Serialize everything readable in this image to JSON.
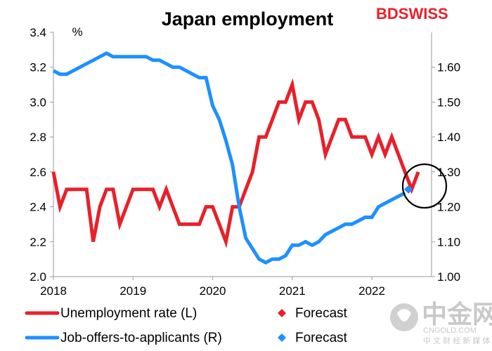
{
  "chart_data": {
    "type": "line",
    "title": "Japan employment",
    "left_axis": {
      "unit_label": "%",
      "ylim": [
        2.0,
        3.4
      ],
      "ticks": [
        "2.0",
        "2.2",
        "2.4",
        "2.6",
        "2.8",
        "3.0",
        "3.2",
        "3.4"
      ]
    },
    "right_axis": {
      "ylim": [
        1.0,
        1.7
      ],
      "ticks": [
        "1.00",
        "1.10",
        "1.20",
        "1.30",
        "1.40",
        "1.50",
        "1.60"
      ]
    },
    "x_axis": {
      "xlim": [
        2018.0,
        2022.75
      ],
      "ticks": [
        "2018",
        "2019",
        "2020",
        "2021",
        "2022"
      ]
    },
    "series": [
      {
        "name": "Unemployment rate (L)",
        "axis": "left",
        "color": "#e8202a",
        "start": 2018.0,
        "step_months": 1,
        "values": [
          2.6,
          2.4,
          2.5,
          2.5,
          2.5,
          2.5,
          2.2,
          2.4,
          2.5,
          2.5,
          2.3,
          2.4,
          2.5,
          2.5,
          2.5,
          2.5,
          2.4,
          2.5,
          2.4,
          2.3,
          2.3,
          2.3,
          2.3,
          2.4,
          2.4,
          2.3,
          2.2,
          2.4,
          2.4,
          2.5,
          2.6,
          2.8,
          2.8,
          2.9,
          3.0,
          3.0,
          3.1,
          2.9,
          3.0,
          3.0,
          2.9,
          2.7,
          2.8,
          2.9,
          2.9,
          2.8,
          2.8,
          2.8,
          2.7,
          2.8,
          2.7,
          2.8,
          2.7,
          2.6,
          2.5,
          2.6
        ]
      },
      {
        "name": "Job-offers-to-applicants (R)",
        "axis": "right",
        "color": "#1e90ff",
        "start": 2018.0,
        "step_months": 1,
        "values": [
          1.59,
          1.58,
          1.58,
          1.59,
          1.6,
          1.61,
          1.62,
          1.63,
          1.64,
          1.63,
          1.63,
          1.63,
          1.63,
          1.63,
          1.63,
          1.62,
          1.62,
          1.61,
          1.6,
          1.6,
          1.59,
          1.58,
          1.57,
          1.57,
          1.49,
          1.45,
          1.39,
          1.32,
          1.2,
          1.11,
          1.08,
          1.05,
          1.04,
          1.05,
          1.05,
          1.06,
          1.09,
          1.09,
          1.1,
          1.09,
          1.1,
          1.12,
          1.13,
          1.14,
          1.15,
          1.15,
          1.16,
          1.17,
          1.17,
          1.2,
          1.21,
          1.22,
          1.23,
          1.24
        ]
      }
    ],
    "forecasts": [
      {
        "label": "Forecast",
        "series": "Unemployment rate (L)",
        "axis": "left",
        "color": "#e8202a",
        "x": 2022.46,
        "value": 2.5
      },
      {
        "label": "Forecast",
        "series": "Job-offers-to-applicants (R)",
        "axis": "right",
        "color": "#1e90ff",
        "x": 2022.46,
        "value": 1.25
      }
    ],
    "annotation": "circle around latest data and forecasts",
    "grid": false,
    "legend": [
      {
        "label": "Unemployment rate (L)",
        "color": "#e8202a",
        "marker": "line"
      },
      {
        "label": "Forecast",
        "color": "#e8202a",
        "marker": "diamond"
      },
      {
        "label": "Job-offers-to-applicants (R)",
        "color": "#1e90ff",
        "marker": "line"
      },
      {
        "label": "Forecast",
        "color": "#1e90ff",
        "marker": "diamond"
      }
    ]
  },
  "logo": {
    "text": "BDSWISS",
    "color": "#e8202a"
  },
  "watermark": {
    "cn": "中金网",
    "url": "CNGOLD.COM",
    "sub": "中 文 财 经 新 媒 体",
    "color": "#c9c9c9"
  }
}
